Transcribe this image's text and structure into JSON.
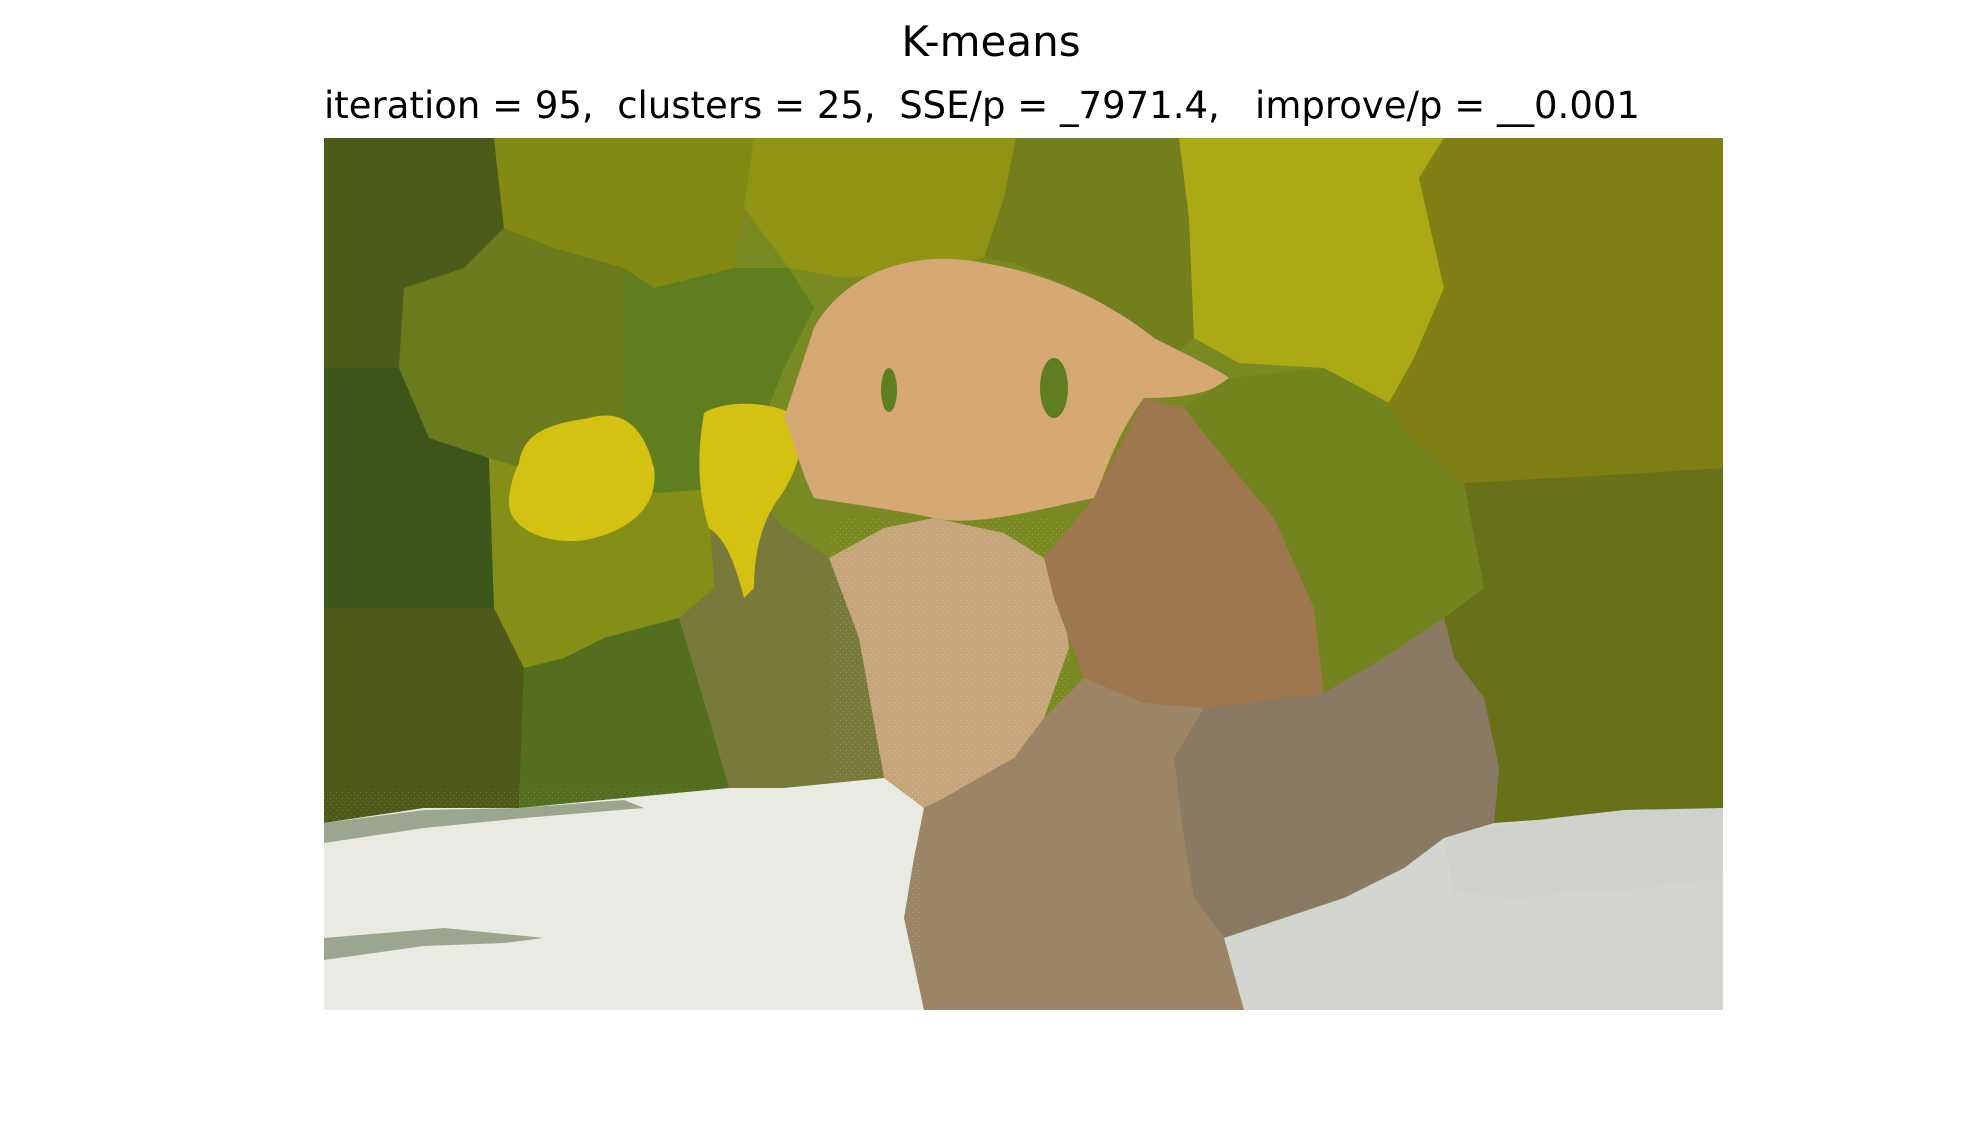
{
  "figure": {
    "title": "K-means",
    "subtitle": "iteration = 95,  clusters = 25,  SSE/p = _7971.4,   improve/p = __0.001"
  },
  "segmentation": {
    "iteration": 95,
    "clusters": 25,
    "sse_per_pixel": 7971.4,
    "improve_per_pixel": 0.001,
    "palette": {
      "dark_green": "#3d561a",
      "olive_dark": "#4e5818",
      "olive": "#68791b",
      "olive_mid": "#7e8712",
      "yellow_olive": "#acaa14",
      "yellow": "#d4c112",
      "leaf_green": "#5f7e1f",
      "tan": "#d6a873",
      "light_tan": "#c6a57a",
      "brown": "#9f774e",
      "taupe": "#9c8566",
      "grey_brown": "#8a7a64",
      "off_white": "#e9eae4",
      "light_grey": "#d2d5d0",
      "sage": "#9ca58d"
    }
  }
}
